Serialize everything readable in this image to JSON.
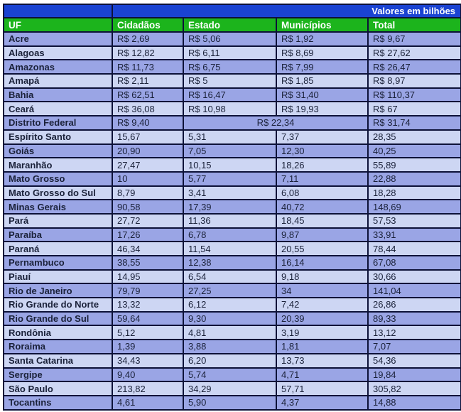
{
  "banner": {
    "title": "Valores em bilhões"
  },
  "chart_data": {
    "type": "table",
    "title": "Valores em bilhões",
    "columns": [
      "UF",
      "Cidadãos",
      "Estado",
      "Municípios",
      "Total"
    ],
    "rows": [
      {
        "uf": "Acre",
        "values": [
          {
            "t": "R$ 2,69"
          },
          {
            "t": "R$ 5,06"
          },
          {
            "t": "R$ 1,92"
          },
          {
            "t": "R$ 9,67"
          }
        ]
      },
      {
        "uf": "Alagoas",
        "values": [
          {
            "t": "R$ 12,82"
          },
          {
            "t": "R$ 6,11"
          },
          {
            "t": "R$ 8,69"
          },
          {
            "t": "R$ 27,62"
          }
        ]
      },
      {
        "uf": "Amazonas",
        "values": [
          {
            "t": "R$ 11,73"
          },
          {
            "t": "R$ 6,75"
          },
          {
            "t": "R$ 7,99"
          },
          {
            "t": "R$ 26,47"
          }
        ]
      },
      {
        "uf": "Amapá",
        "values": [
          {
            "t": "R$ 2,11"
          },
          {
            "t": "R$ 5"
          },
          {
            "t": "R$ 1,85"
          },
          {
            "t": "R$ 8,97"
          }
        ]
      },
      {
        "uf": "Bahia",
        "values": [
          {
            "t": "R$ 62,51"
          },
          {
            "t": "R$ 16,47"
          },
          {
            "t": "R$ 31,40"
          },
          {
            "t": "R$ 110,37"
          }
        ]
      },
      {
        "uf": "Ceará",
        "values": [
          {
            "t": "R$ 36,08"
          },
          {
            "t": "R$ 10,98"
          },
          {
            "t": "R$ 19,93"
          },
          {
            "t": "R$ 67"
          }
        ]
      },
      {
        "uf": "Distrito  Federal",
        "values": [
          {
            "t": "R$ 9,40"
          },
          {
            "t": "R$ 22,34",
            "colspan": 2,
            "align": "center"
          },
          {
            "t": "R$ 31,74"
          }
        ]
      },
      {
        "uf": "Espírito Santo",
        "values": [
          {
            "t": "15,67"
          },
          {
            "t": "5,31"
          },
          {
            "t": "7,37"
          },
          {
            "t": "28,35"
          }
        ]
      },
      {
        "uf": "Goiás",
        "values": [
          {
            "t": "20,90"
          },
          {
            "t": "7,05"
          },
          {
            "t": "12,30"
          },
          {
            "t": "40,25"
          }
        ]
      },
      {
        "uf": "Maranhão",
        "values": [
          {
            "t": "27,47"
          },
          {
            "t": "10,15"
          },
          {
            "t": "18,26"
          },
          {
            "t": "55,89"
          }
        ]
      },
      {
        "uf": "Mato Grosso",
        "values": [
          {
            "t": "10"
          },
          {
            "t": "5,77"
          },
          {
            "t": "7,11"
          },
          {
            "t": "22,88"
          }
        ]
      },
      {
        "uf": "Mato Grosso do Sul",
        "values": [
          {
            "t": "8,79"
          },
          {
            "t": "3,41"
          },
          {
            "t": "6,08"
          },
          {
            "t": "18,28"
          }
        ]
      },
      {
        "uf": "Minas Gerais",
        "values": [
          {
            "t": "90,58"
          },
          {
            "t": "17,39"
          },
          {
            "t": "40,72"
          },
          {
            "t": "148,69"
          }
        ]
      },
      {
        "uf": "Pará",
        "values": [
          {
            "t": "27,72"
          },
          {
            "t": "11,36"
          },
          {
            "t": "18,45"
          },
          {
            "t": "57,53"
          }
        ]
      },
      {
        "uf": "Paraíba",
        "values": [
          {
            "t": "17,26"
          },
          {
            "t": "6,78"
          },
          {
            "t": "9,87"
          },
          {
            "t": "33,91"
          }
        ]
      },
      {
        "uf": "Paraná",
        "values": [
          {
            "t": "46,34"
          },
          {
            "t": "11,54"
          },
          {
            "t": "20,55"
          },
          {
            "t": "78,44"
          }
        ]
      },
      {
        "uf": "Pernambuco",
        "values": [
          {
            "t": "38,55"
          },
          {
            "t": "12,38"
          },
          {
            "t": "16,14"
          },
          {
            "t": "67,08"
          }
        ]
      },
      {
        "uf": "Piauí",
        "values": [
          {
            "t": "14,95"
          },
          {
            "t": "6,54"
          },
          {
            "t": "9,18"
          },
          {
            "t": "30,66"
          }
        ]
      },
      {
        "uf": "Rio de Janeiro",
        "values": [
          {
            "t": "79,79"
          },
          {
            "t": "27,25"
          },
          {
            "t": "34"
          },
          {
            "t": "141,04"
          }
        ]
      },
      {
        "uf": "Rio Grande do Norte",
        "values": [
          {
            "t": "13,32"
          },
          {
            "t": "6,12"
          },
          {
            "t": "7,42"
          },
          {
            "t": "26,86"
          }
        ]
      },
      {
        "uf": "Rio Grande do Sul",
        "values": [
          {
            "t": "59,64"
          },
          {
            "t": "9,30"
          },
          {
            "t": "20,39"
          },
          {
            "t": "89,33"
          }
        ]
      },
      {
        "uf": "Rondônia",
        "values": [
          {
            "t": "5,12"
          },
          {
            "t": "4,81"
          },
          {
            "t": "3,19"
          },
          {
            "t": "13,12"
          }
        ]
      },
      {
        "uf": "Roraima",
        "values": [
          {
            "t": "1,39"
          },
          {
            "t": "3,88"
          },
          {
            "t": "1,81"
          },
          {
            "t": "7,07"
          }
        ]
      },
      {
        "uf": "Santa Catarina",
        "values": [
          {
            "t": "34,43"
          },
          {
            "t": "6,20"
          },
          {
            "t": "13,73"
          },
          {
            "t": "54,36"
          }
        ]
      },
      {
        "uf": "Sergipe",
        "values": [
          {
            "t": "9,40"
          },
          {
            "t": "5,74"
          },
          {
            "t": "4,71"
          },
          {
            "t": "19,84"
          }
        ]
      },
      {
        "uf": "São Paulo",
        "values": [
          {
            "t": "213,82"
          },
          {
            "t": "34,29"
          },
          {
            "t": "57,71"
          },
          {
            "t": "305,82"
          }
        ]
      },
      {
        "uf": "Tocantins",
        "values": [
          {
            "t": "4,61"
          },
          {
            "t": "5,90"
          },
          {
            "t": "4,37"
          },
          {
            "t": "14,88"
          }
        ]
      }
    ]
  },
  "colors": {
    "banner_blue": "#1a43d2",
    "header_green": "#1cb41c",
    "row_dark": "#9aa5e5",
    "row_light": "#cdd6f3",
    "border": "#0d1238",
    "text": "#1a2139",
    "header_text": "#ffffff",
    "page_bg": "#ffffff"
  }
}
